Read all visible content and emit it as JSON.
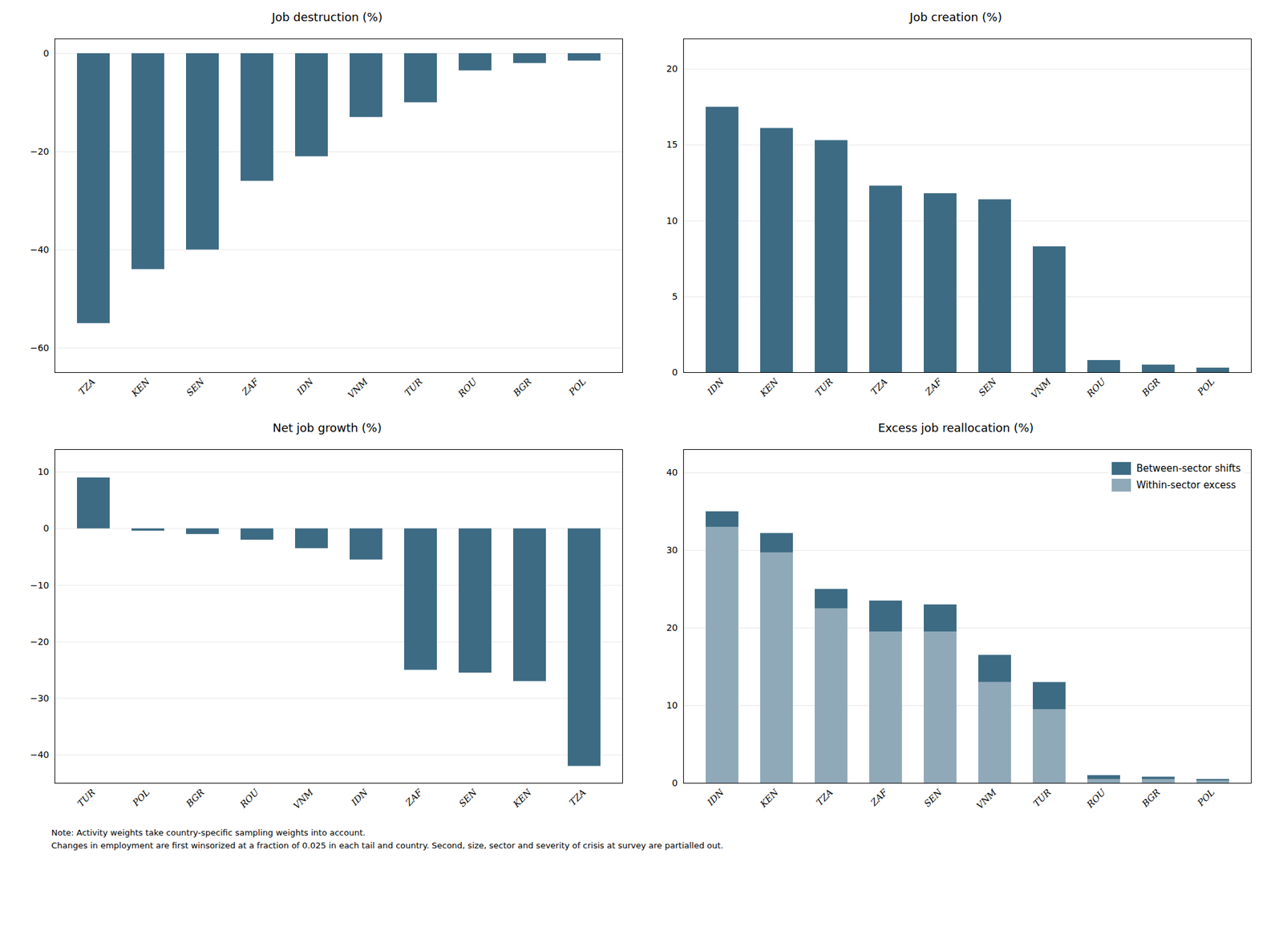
{
  "chart_data": [
    {
      "type": "bar",
      "title": "Job destruction (%)",
      "categories": [
        "TZA",
        "KEN",
        "SEN",
        "ZAF",
        "IDN",
        "VNM",
        "TUR",
        "ROU",
        "BGR",
        "POL"
      ],
      "values": [
        -55,
        -44,
        -40,
        -26,
        -21,
        -13,
        -10,
        -3.5,
        -2.0,
        -1.5
      ],
      "color": "#3d6b84",
      "ylim": [
        -65,
        3
      ],
      "yticks": [
        0,
        -20,
        -40,
        -60
      ],
      "grid": true
    },
    {
      "type": "bar",
      "title": "Job creation (%)",
      "categories": [
        "IDN",
        "KEN",
        "TUR",
        "TZA",
        "ZAF",
        "SEN",
        "VNM",
        "ROU",
        "BGR",
        "POL"
      ],
      "values": [
        17.5,
        16.1,
        15.3,
        12.3,
        11.8,
        11.4,
        8.3,
        0.8,
        0.5,
        0.3
      ],
      "color": "#3d6b84",
      "ylim": [
        0,
        22
      ],
      "yticks": [
        0,
        5,
        10,
        15,
        20
      ],
      "grid": true
    },
    {
      "type": "bar",
      "title": "Net job growth (%)",
      "categories": [
        "TUR",
        "POL",
        "BGR",
        "ROU",
        "VNM",
        "IDN",
        "ZAF",
        "SEN",
        "KEN",
        "TZA"
      ],
      "values": [
        9.0,
        -0.4,
        -1.0,
        -2.0,
        -3.5,
        -5.5,
        -25,
        -25.5,
        -27,
        -42
      ],
      "color": "#3d6b84",
      "ylim": [
        -45,
        14
      ],
      "yticks": [
        10,
        0,
        -10,
        -20,
        -30,
        -40
      ],
      "grid": true
    },
    {
      "type": "bar",
      "title": "Excess job reallocation (%)",
      "categories": [
        "IDN",
        "KEN",
        "TZA",
        "ZAF",
        "SEN",
        "VNM",
        "TUR",
        "ROU",
        "BGR",
        "POL"
      ],
      "series": [
        {
          "name": "Within-sector excess",
          "color": "#8fa9b8",
          "values": [
            33.0,
            29.7,
            22.5,
            19.5,
            19.5,
            13.0,
            9.5,
            0.5,
            0.5,
            0.3
          ]
        },
        {
          "name": "Between-sector shifts",
          "color": "#3d6b84",
          "values": [
            2.0,
            2.5,
            2.5,
            4.0,
            3.5,
            3.5,
            3.5,
            0.5,
            0.3,
            0.2
          ]
        }
      ],
      "stacked": true,
      "ylim": [
        0,
        43
      ],
      "yticks": [
        0,
        10,
        20,
        30,
        40
      ],
      "grid": true,
      "legend": "upper right"
    }
  ],
  "note": "Note: Activity weights take country-specific sampling weights into account.\nChanges in employment are first winsorized at a fraction of 0.025 in each tail and country. Second, size, sector and severity of crisis at survey are partialled out."
}
